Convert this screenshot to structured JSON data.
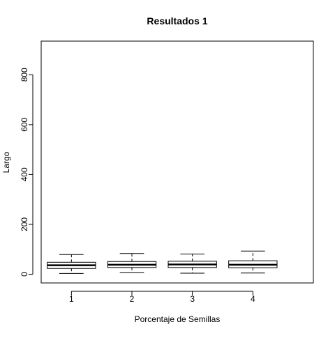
{
  "chart_data": {
    "type": "box",
    "title": "Resultados 1",
    "xlabel": "Porcentaje de Semillas",
    "ylabel": "Largo",
    "categories": [
      "1",
      "2",
      "3",
      "4"
    ],
    "xlim": [
      0.5,
      5
    ],
    "ylim": [
      -35,
      935
    ],
    "y_ticks": [
      0,
      200,
      400,
      600,
      800
    ],
    "y_tick_labels": [
      "0",
      "200",
      "400",
      "600",
      "800"
    ],
    "boxes": [
      {
        "category": "1",
        "min": 3,
        "q1": 23,
        "median": 36,
        "q3": 48,
        "max": 79
      },
      {
        "category": "2",
        "min": 6,
        "q1": 27,
        "median": 38,
        "q3": 51,
        "max": 83
      },
      {
        "category": "3",
        "min": 4,
        "q1": 27,
        "median": 39,
        "q3": 52,
        "max": 81
      },
      {
        "category": "4",
        "min": 5,
        "q1": 26,
        "median": 38,
        "q3": 54,
        "max": 93
      }
    ],
    "grid": false,
    "legend": "none",
    "colors": {
      "box_fill": "#ffffff",
      "stroke": "#000000",
      "background": "#ffffff"
    }
  }
}
